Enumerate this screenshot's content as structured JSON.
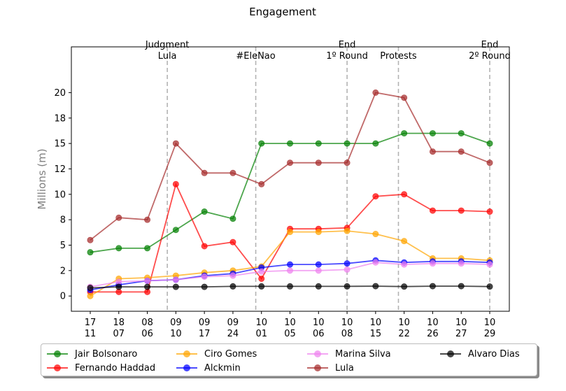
{
  "chart_data": {
    "type": "line",
    "title": "Engagement",
    "xlabel": "",
    "ylabel": "Millions (m)",
    "ylim": [
      -1.5,
      24.5
    ],
    "yticks": [
      0,
      2,
      5,
      8,
      10,
      12,
      15,
      18,
      20
    ],
    "yticks_pos": [
      0,
      2.5,
      5,
      7.5,
      10,
      12.5,
      15,
      17.5,
      20
    ],
    "categories": [
      [
        "17",
        "11"
      ],
      [
        "18",
        "07"
      ],
      [
        "08",
        "06"
      ],
      [
        "09",
        "10"
      ],
      [
        "09",
        "17"
      ],
      [
        "09",
        "24"
      ],
      [
        "10",
        "01"
      ],
      [
        "10",
        "05"
      ],
      [
        "10",
        "06"
      ],
      [
        "10",
        "08"
      ],
      [
        "10",
        "15"
      ],
      [
        "10",
        "22"
      ],
      [
        "10",
        "26"
      ],
      [
        "10",
        "27"
      ],
      [
        "10",
        "29"
      ]
    ],
    "events": [
      {
        "x": 2.7,
        "label": [
          "Judgment",
          "Lula"
        ]
      },
      {
        "x": 5.8,
        "label": [
          "#EleNao"
        ]
      },
      {
        "x": 9.0,
        "label": [
          "End",
          "1º Round"
        ]
      },
      {
        "x": 10.8,
        "label": [
          "Protests"
        ]
      },
      {
        "x": 14.0,
        "label": [
          "End",
          "2º Round"
        ]
      }
    ],
    "grid": false,
    "legend_position": "bottom",
    "series": [
      {
        "name": "Jair Bolsonaro",
        "color": "#008000",
        "values": [
          4.3,
          4.7,
          4.7,
          6.5,
          8.3,
          7.6,
          15.0,
          15.0,
          15.0,
          15.0,
          15.0,
          16.0,
          16.0,
          16.0,
          15.0
        ]
      },
      {
        "name": "Fernando Haddad",
        "color": "#ff0000",
        "values": [
          0.4,
          0.4,
          0.4,
          11.0,
          4.9,
          5.3,
          1.7,
          6.6,
          6.6,
          6.7,
          9.8,
          10.0,
          8.4,
          8.4,
          8.3
        ]
      },
      {
        "name": "Ciro Gomes",
        "color": "#ffa500",
        "values": [
          0.0,
          1.7,
          1.8,
          2.0,
          2.3,
          2.5,
          2.9,
          6.3,
          6.3,
          6.4,
          6.1,
          5.4,
          3.7,
          3.7,
          3.5
        ]
      },
      {
        "name": "Alckmin",
        "color": "#0000ff",
        "values": [
          0.6,
          1.1,
          1.5,
          1.6,
          2.0,
          2.2,
          2.8,
          3.1,
          3.1,
          3.2,
          3.5,
          3.3,
          3.4,
          3.4,
          3.3
        ]
      },
      {
        "name": "Marina Silva",
        "color": "#ee82ee",
        "values": [
          0.9,
          1.4,
          1.5,
          1.6,
          1.9,
          2.0,
          2.4,
          2.5,
          2.5,
          2.6,
          3.3,
          3.1,
          3.2,
          3.2,
          3.1
        ]
      },
      {
        "name": "Lula",
        "color": "#a52a2a",
        "values": [
          5.5,
          7.7,
          7.5,
          15.0,
          12.1,
          12.1,
          11.0,
          13.1,
          13.1,
          13.1,
          20.0,
          19.5,
          14.2,
          14.2,
          13.1
        ]
      },
      {
        "name": "Alvaro Dias",
        "color": "#000000",
        "values": [
          0.8,
          0.9,
          0.9,
          0.9,
          0.9,
          0.95,
          0.95,
          0.95,
          0.95,
          0.95,
          0.97,
          0.93,
          0.97,
          0.97,
          0.93
        ]
      }
    ]
  }
}
